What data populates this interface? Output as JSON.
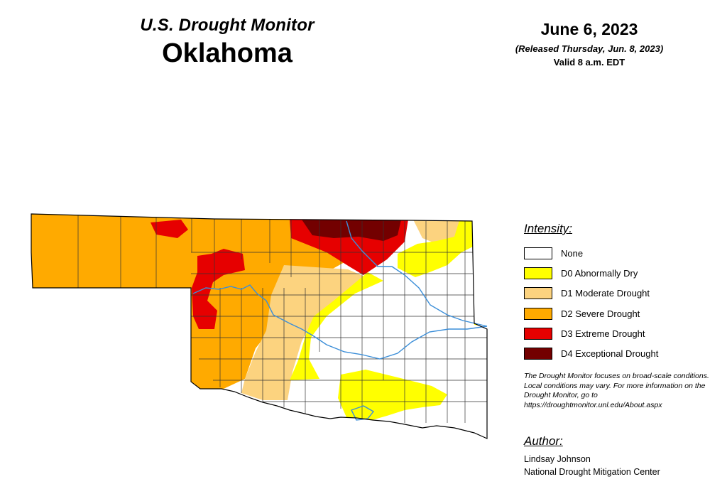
{
  "header": {
    "subtitle": "U.S. Drought Monitor",
    "state": "Oklahoma"
  },
  "date": {
    "main": "June 6, 2023",
    "released": "(Released Thursday, Jun. 8, 2023)",
    "valid": "Valid 8 a.m. EDT"
  },
  "legend": {
    "title": "Intensity:",
    "items": [
      {
        "label": "None",
        "color": "#ffffff"
      },
      {
        "label": "D0 Abnormally Dry",
        "color": "#ffff00"
      },
      {
        "label": "D1 Moderate Drought",
        "color": "#fcd37f"
      },
      {
        "label": "D2 Severe Drought",
        "color": "#ffaa00"
      },
      {
        "label": "D3 Extreme Drought",
        "color": "#e60000"
      },
      {
        "label": "D4 Exceptional Drought",
        "color": "#730000"
      }
    ]
  },
  "disclaimer": "The Drought Monitor focuses on broad-scale conditions. Local conditions may vary. For more information on the Drought Monitor, go to https://droughtmonitor.unl.edu/About.aspx",
  "author": {
    "title": "Author:",
    "name": "Lindsay Johnson",
    "org": "National Drought Mitigation Center"
  }
}
